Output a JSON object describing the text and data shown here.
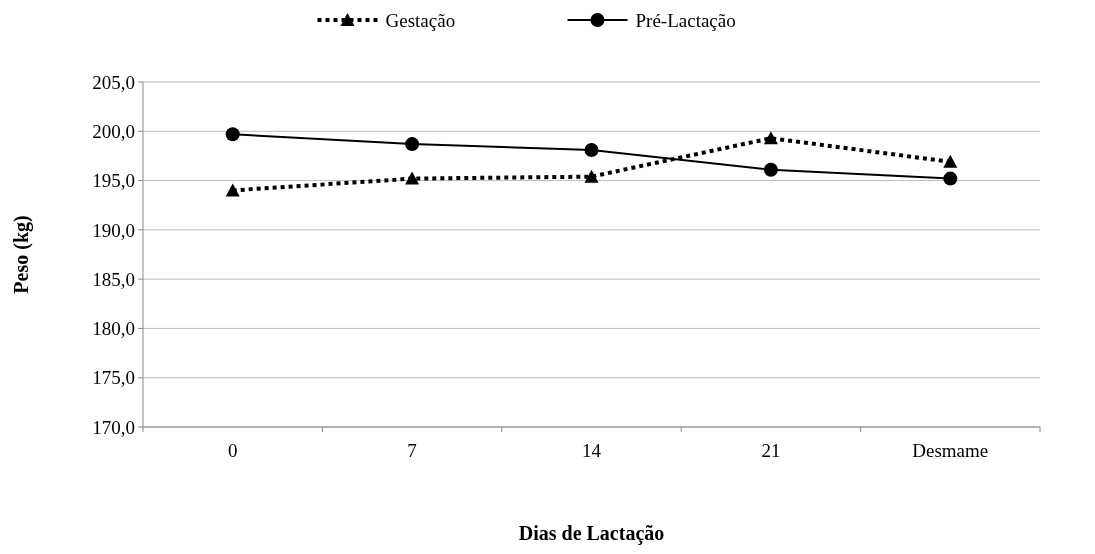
{
  "chart_data": {
    "type": "line",
    "xlabel": "Dias de Lactação",
    "ylabel": "Peso (kg)",
    "categories": [
      "0",
      "7",
      "14",
      "21",
      "Desmame"
    ],
    "series": [
      {
        "name": "Gestação",
        "color": "#000000",
        "marker": "triangle",
        "line_style": "dotted",
        "values": [
          194.0,
          195.2,
          195.4,
          199.3,
          196.9
        ]
      },
      {
        "name": "Pré-Lactação",
        "color": "#000000",
        "marker": "circle",
        "line_style": "solid",
        "values": [
          199.7,
          198.7,
          198.1,
          196.1,
          195.2
        ]
      }
    ],
    "ylim": [
      170,
      205
    ],
    "yticks": [
      {
        "value": 170,
        "label": "170,0"
      },
      {
        "value": 175,
        "label": "175,0"
      },
      {
        "value": 180,
        "label": "180,0"
      },
      {
        "value": 185,
        "label": "185,0"
      },
      {
        "value": 190,
        "label": "190,0"
      },
      {
        "value": 195,
        "label": "195,0"
      },
      {
        "value": 200,
        "label": "200,0"
      },
      {
        "value": 205,
        "label": "205,0"
      }
    ],
    "grid": "y",
    "legend": "top"
  }
}
